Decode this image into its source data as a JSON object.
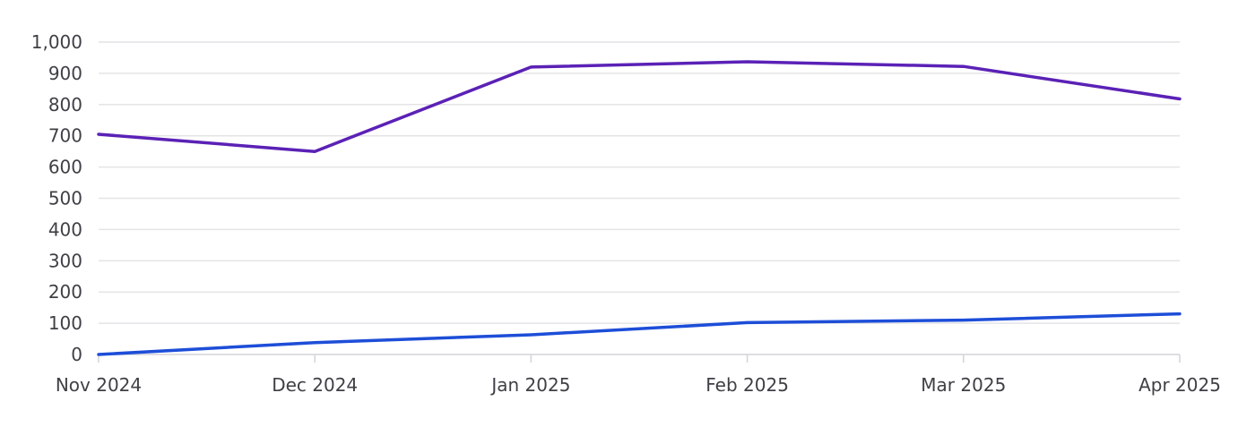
{
  "chart_data": {
    "type": "line",
    "categories": [
      "Nov 2024",
      "Dec 2024",
      "Jan 2025",
      "Feb 2025",
      "Mar 2025",
      "Apr 2025"
    ],
    "series": [
      {
        "values": [
          705,
          650,
          920,
          937,
          922,
          818
        ],
        "color": "#5b21b6"
      },
      {
        "values": [
          0,
          38,
          63,
          102,
          110,
          130
        ],
        "color": "#1d4ed8"
      }
    ],
    "ylim": [
      0,
      1000
    ],
    "yticks": [
      0,
      100,
      200,
      300,
      400,
      500,
      600,
      700,
      800,
      900,
      1000
    ],
    "ytick_labels": [
      "0",
      "100",
      "200",
      "300",
      "400",
      "500",
      "600",
      "700",
      "800",
      "900",
      "1,000"
    ],
    "grid": true,
    "legend": "none",
    "title": "",
    "xlabel": "",
    "ylabel": ""
  }
}
